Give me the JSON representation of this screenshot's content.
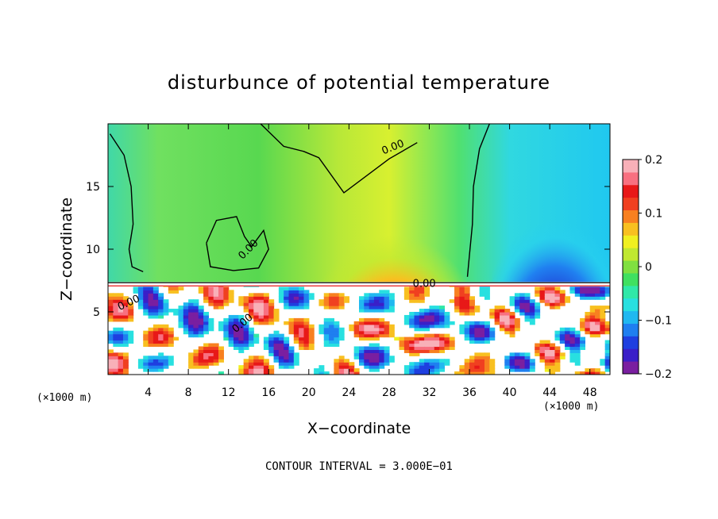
{
  "chart_data": {
    "type": "heatmap",
    "title": "disturbunce of potential temperature",
    "xlabel": "X−coordinate",
    "ylabel": "Z−coordinate",
    "x_unit": "(×1000 m)",
    "y_unit": "(×1000 m)",
    "xlim": [
      0,
      50
    ],
    "ylim": [
      0,
      20
    ],
    "x_ticks": [
      4,
      8,
      12,
      16,
      20,
      24,
      28,
      32,
      36,
      40,
      44,
      48
    ],
    "y_ticks": [
      5,
      10,
      15
    ],
    "colorbar": {
      "range": [
        -0.2,
        0.2
      ],
      "ticks": [
        {
          "value": 0.2,
          "label": "0.2"
        },
        {
          "value": 0.1,
          "label": "0.1"
        },
        {
          "value": 0.0,
          "label": "0"
        },
        {
          "value": -0.1,
          "label": "−0.1"
        },
        {
          "value": -0.2,
          "label": "−0.2"
        }
      ],
      "colors": [
        "#7a1fa0",
        "#3a1fc8",
        "#1f3fe0",
        "#1f7ff0",
        "#20b8f0",
        "#28e0e0",
        "#30e8a8",
        "#40e060",
        "#80e040",
        "#c0e830",
        "#f0f020",
        "#f8c020",
        "#f88020",
        "#f04020",
        "#e81818",
        "#f87080",
        "#f8b0b8"
      ]
    },
    "contour_label": "0.00",
    "contour_interval_text": "CONTOUR INTERVAL = 3.000E−01"
  }
}
